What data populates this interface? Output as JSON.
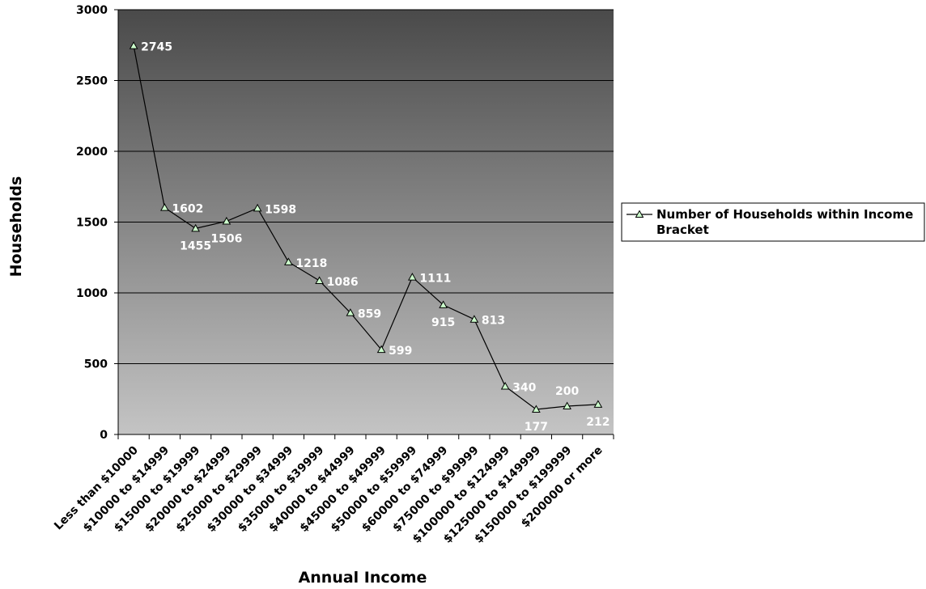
{
  "chart_data": {
    "type": "line",
    "xlabel": "Annual Income",
    "ylabel": "Households",
    "ylim": [
      0,
      3000
    ],
    "yticks": [
      0,
      500,
      1000,
      1500,
      2000,
      2500,
      3000
    ],
    "grid": true,
    "legend_position": "right",
    "background": {
      "top": "#4a4a4a",
      "bottom": "#c4c4c4"
    },
    "line_color": "#000000",
    "marker_fill": "#ccffcc",
    "categories": [
      "Less than $10000",
      "$10000 to $14999",
      "$15000 to $19999",
      "$20000 to $24999",
      "$25000 to $29999",
      "$30000 to $34999",
      "$35000 to $39999",
      "$40000 to $44999",
      "$45000 to $49999",
      "$50000 to $59999",
      "$60000 to $74999",
      "$75000 to $99999",
      "$100000 to $124999",
      "$125000 to $149999",
      "$150000 to $199999",
      "$200000 or more"
    ],
    "series": [
      {
        "name": "Number of Households within Income Bracket",
        "values": [
          2745,
          1602,
          1455,
          1506,
          1598,
          1218,
          1086,
          859,
          599,
          1111,
          915,
          813,
          340,
          177,
          200,
          212
        ],
        "label_positions": [
          "right",
          "right",
          "below",
          "below",
          "right",
          "right",
          "right",
          "right",
          "right",
          "right",
          "below",
          "right",
          "right",
          "below",
          "above",
          "below"
        ]
      }
    ]
  }
}
